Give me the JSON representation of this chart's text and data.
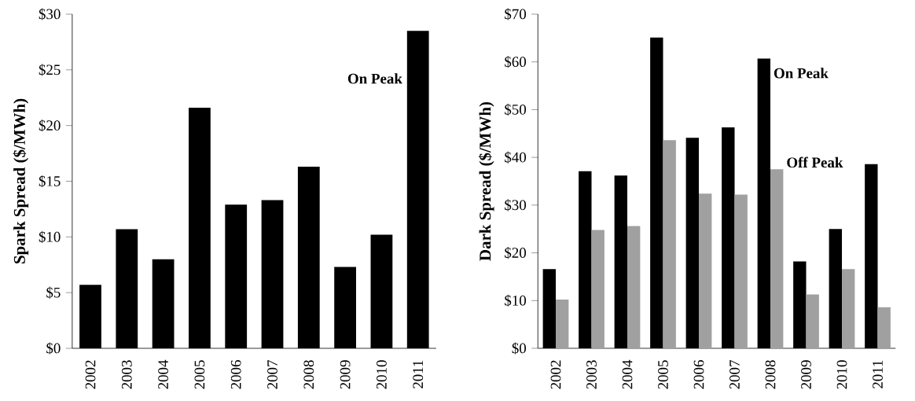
{
  "chart_data": [
    {
      "type": "bar",
      "ylabel": "Spark Spread ($/MWh)",
      "categories": [
        "2002",
        "2003",
        "2004",
        "2005",
        "2006",
        "2007",
        "2008",
        "2009",
        "2010",
        "2011"
      ],
      "series": [
        {
          "name": "On Peak",
          "color": "#000000",
          "values": [
            5.7,
            10.7,
            8.0,
            21.6,
            12.9,
            13.3,
            16.3,
            7.3,
            10.2,
            28.5
          ]
        }
      ],
      "ylim": [
        0,
        30
      ],
      "yticks": [
        {
          "value": 0,
          "label": "$0"
        },
        {
          "value": 5,
          "label": "$5"
        },
        {
          "value": 10,
          "label": "$10"
        },
        {
          "value": 15,
          "label": "$15"
        },
        {
          "value": 20,
          "label": "$20"
        },
        {
          "value": 25,
          "label": "$25"
        },
        {
          "value": 30,
          "label": "$30"
        }
      ]
    },
    {
      "type": "bar",
      "ylabel": "Dark Spread ($/MWh)",
      "categories": [
        "2002",
        "2003",
        "2004",
        "2005",
        "2006",
        "2007",
        "2008",
        "2009",
        "2010",
        "2011"
      ],
      "series": [
        {
          "name": "On Peak",
          "color": "#000000",
          "values": [
            16.6,
            37.1,
            36.2,
            65.1,
            44.1,
            46.3,
            60.7,
            18.2,
            25.0,
            38.6
          ]
        },
        {
          "name": "Off Peak",
          "color": "#a0a0a0",
          "values": [
            10.2,
            24.8,
            25.6,
            43.6,
            32.4,
            32.2,
            37.5,
            11.3,
            16.6,
            8.6
          ]
        }
      ],
      "ylim": [
        0,
        70
      ],
      "yticks": [
        {
          "value": 0,
          "label": "$0"
        },
        {
          "value": 10,
          "label": "$10"
        },
        {
          "value": 20,
          "label": "$20"
        },
        {
          "value": 30,
          "label": "$30"
        },
        {
          "value": 40,
          "label": "$40"
        },
        {
          "value": 50,
          "label": "$50"
        },
        {
          "value": 60,
          "label": "$60"
        },
        {
          "value": 70,
          "label": "$70"
        }
      ]
    }
  ]
}
